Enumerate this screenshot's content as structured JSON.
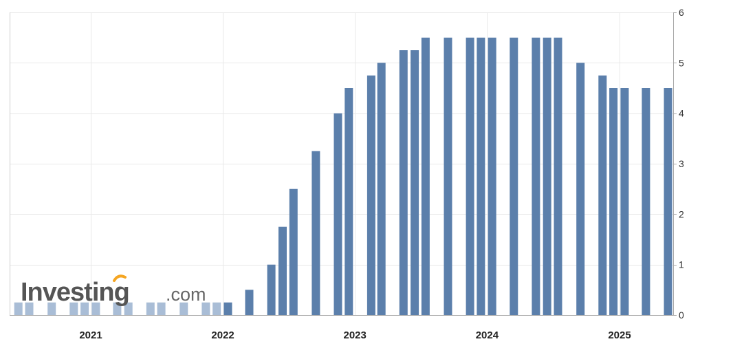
{
  "chart_data": {
    "type": "bar",
    "title": "",
    "xlabel": "",
    "ylabel": "",
    "ylim": [
      0,
      6
    ],
    "y_ticks": [
      "0",
      "1",
      "2",
      "3",
      "4",
      "5",
      "6"
    ],
    "x_tick_labels": [
      {
        "label": "2021",
        "date": "2021-01-01"
      },
      {
        "label": "2022",
        "date": "2022-01-01"
      },
      {
        "label": "2023",
        "date": "2023-01-01"
      },
      {
        "label": "2024",
        "date": "2024-01-01"
      },
      {
        "label": "2025",
        "date": "2025-01-01"
      }
    ],
    "grid": true,
    "y_axis_side": "right",
    "bar_color": "#5b7fab",
    "categories": [
      "2020-06",
      "2020-07",
      "2020-09",
      "2020-11",
      "2020-12",
      "2021-01",
      "2021-03",
      "2021-04",
      "2021-06",
      "2021-07",
      "2021-09",
      "2021-11",
      "2021-12",
      "2022-01",
      "2022-03",
      "2022-05",
      "2022-06",
      "2022-07",
      "2022-09",
      "2022-11",
      "2022-12",
      "2023-02",
      "2023-03",
      "2023-05",
      "2023-06",
      "2023-07",
      "2023-09",
      "2023-11",
      "2023-12",
      "2024-01",
      "2024-03",
      "2024-05",
      "2024-06",
      "2024-07",
      "2024-09",
      "2024-11",
      "2024-12",
      "2025-01",
      "2025-03",
      "2025-05"
    ],
    "values": [
      0.25,
      0.25,
      0.25,
      0.25,
      0.25,
      0.25,
      0.25,
      0.25,
      0.25,
      0.25,
      0.25,
      0.25,
      0.25,
      0.25,
      0.5,
      1.0,
      1.75,
      2.5,
      3.25,
      4.0,
      4.5,
      4.75,
      5.0,
      5.25,
      5.25,
      5.5,
      5.5,
      5.5,
      5.5,
      5.5,
      5.5,
      5.5,
      5.5,
      5.5,
      5.0,
      4.75,
      4.5,
      4.5,
      4.5,
      4.5
    ]
  },
  "watermark": {
    "brand": "Investing",
    "suffix": ".com",
    "accent_color": "#f5a623"
  }
}
